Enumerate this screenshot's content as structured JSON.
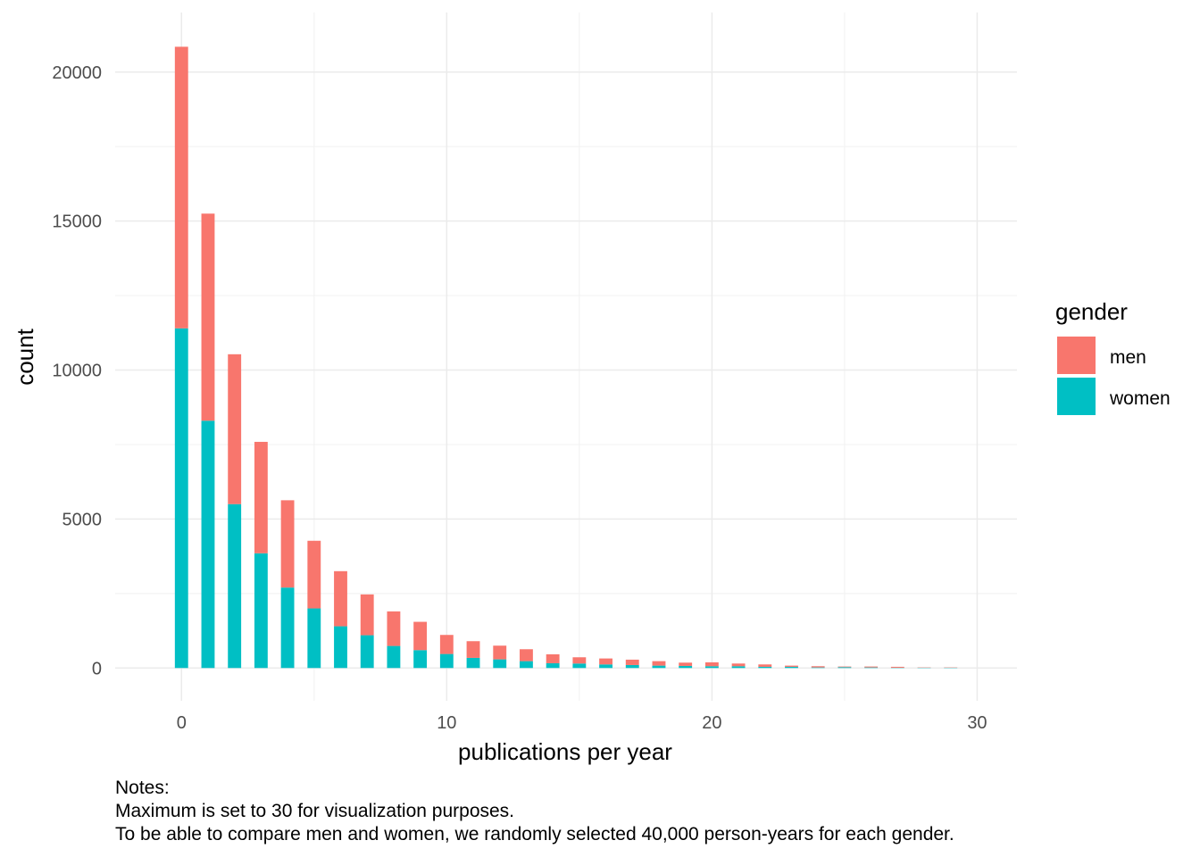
{
  "chart_data": {
    "type": "bar",
    "stacked": true,
    "xlabel": "publications per year",
    "ylabel": "count",
    "x_ticks": [
      0,
      10,
      20,
      30
    ],
    "y_ticks": [
      0,
      5000,
      10000,
      15000,
      20000
    ],
    "xlim": [
      -2.5,
      31.5
    ],
    "ylim": [
      -1100,
      22000
    ],
    "grid": true,
    "legend": {
      "title": "gender",
      "position": "right"
    },
    "colors": {
      "men": "#F8766D",
      "women": "#00BFC4",
      "grid_major": "#EBEBEB",
      "grid_minor": "#F3F3F3"
    },
    "x": [
      0,
      1,
      2,
      3,
      4,
      5,
      6,
      7,
      8,
      9,
      10,
      11,
      12,
      13,
      14,
      15,
      16,
      17,
      18,
      19,
      20,
      21,
      22,
      23,
      24,
      25,
      26,
      27,
      28,
      29
    ],
    "series": [
      {
        "name": "women",
        "values": [
          11400,
          8300,
          5500,
          3850,
          2700,
          2000,
          1400,
          1100,
          740,
          600,
          470,
          340,
          290,
          230,
          160,
          150,
          120,
          100,
          80,
          70,
          60,
          60,
          40,
          40,
          20,
          30,
          20,
          10,
          10,
          10
        ]
      },
      {
        "name": "men",
        "values": [
          9450,
          6950,
          5030,
          3740,
          2930,
          2270,
          1850,
          1370,
          1160,
          950,
          640,
          560,
          460,
          400,
          300,
          210,
          200,
          180,
          150,
          110,
          130,
          90,
          80,
          40,
          40,
          20,
          30,
          30,
          10,
          10
        ]
      }
    ]
  },
  "notes": {
    "heading": "Notes:",
    "line1": "Maximum is set to 30 for visualization purposes.",
    "line2": "To be able to compare men and women, we randomly selected 40,000 person-years for each gender."
  }
}
